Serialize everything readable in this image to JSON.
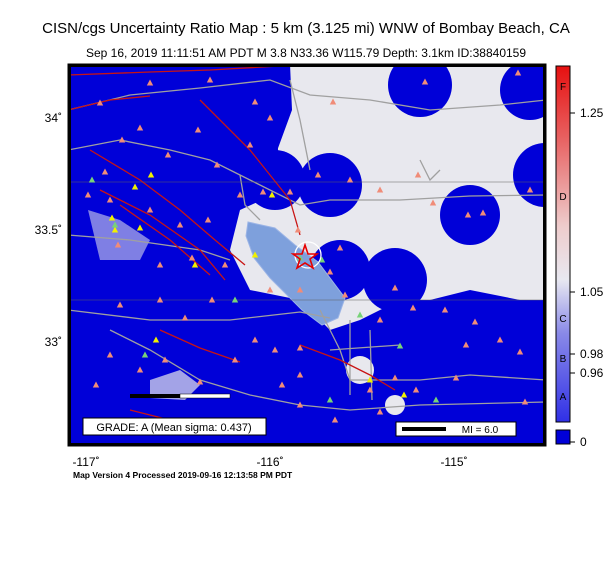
{
  "header": {
    "title": "CISN/cgs Uncertainty Ratio Map : 5 km (3.125 mi) WNW of Bombay Beach, CA",
    "subtitle": "Sep 16, 2019 11:11:51 AM PDT   M 3.8   N33.36 W115.79   Depth: 3.1km   ID:38840159"
  },
  "map": {
    "lat_ticks": [
      {
        "value": 34.0,
        "label": "34˚"
      },
      {
        "value": 33.5,
        "label": "33.5˚"
      },
      {
        "value": 33.0,
        "label": "33˚"
      }
    ],
    "lon_ticks": [
      {
        "value": -117.0,
        "label": "-117˚"
      },
      {
        "value": -116.0,
        "label": "-116˚"
      },
      {
        "value": -115.0,
        "label": "-115˚"
      }
    ],
    "epicenter": {
      "lat": 33.36,
      "lon": -115.79
    },
    "grade_text": "GRADE: A (Mean sigma: 0.437)",
    "scale_bar_label": "MI = 6.0",
    "colors": {
      "low_uncertainty": "#0000d8",
      "high_uncertainty": "#e8e8ee",
      "water": "#7ea0dc",
      "faults": "#c81414",
      "roads": "#9a9a9a",
      "station_red": "#f08c78",
      "station_yellow": "#f0f000",
      "station_green": "#78d278",
      "epicenter_star": "#e60000"
    }
  },
  "colorbar": {
    "letters": [
      "F",
      "D",
      "C",
      "B",
      "A"
    ],
    "values": [
      "1.25",
      "1.05",
      "0.98",
      "0.96",
      "0"
    ]
  },
  "footer": {
    "text": "Map Version 4 Processed 2019-09-16 12:13:58 PM PDT"
  }
}
